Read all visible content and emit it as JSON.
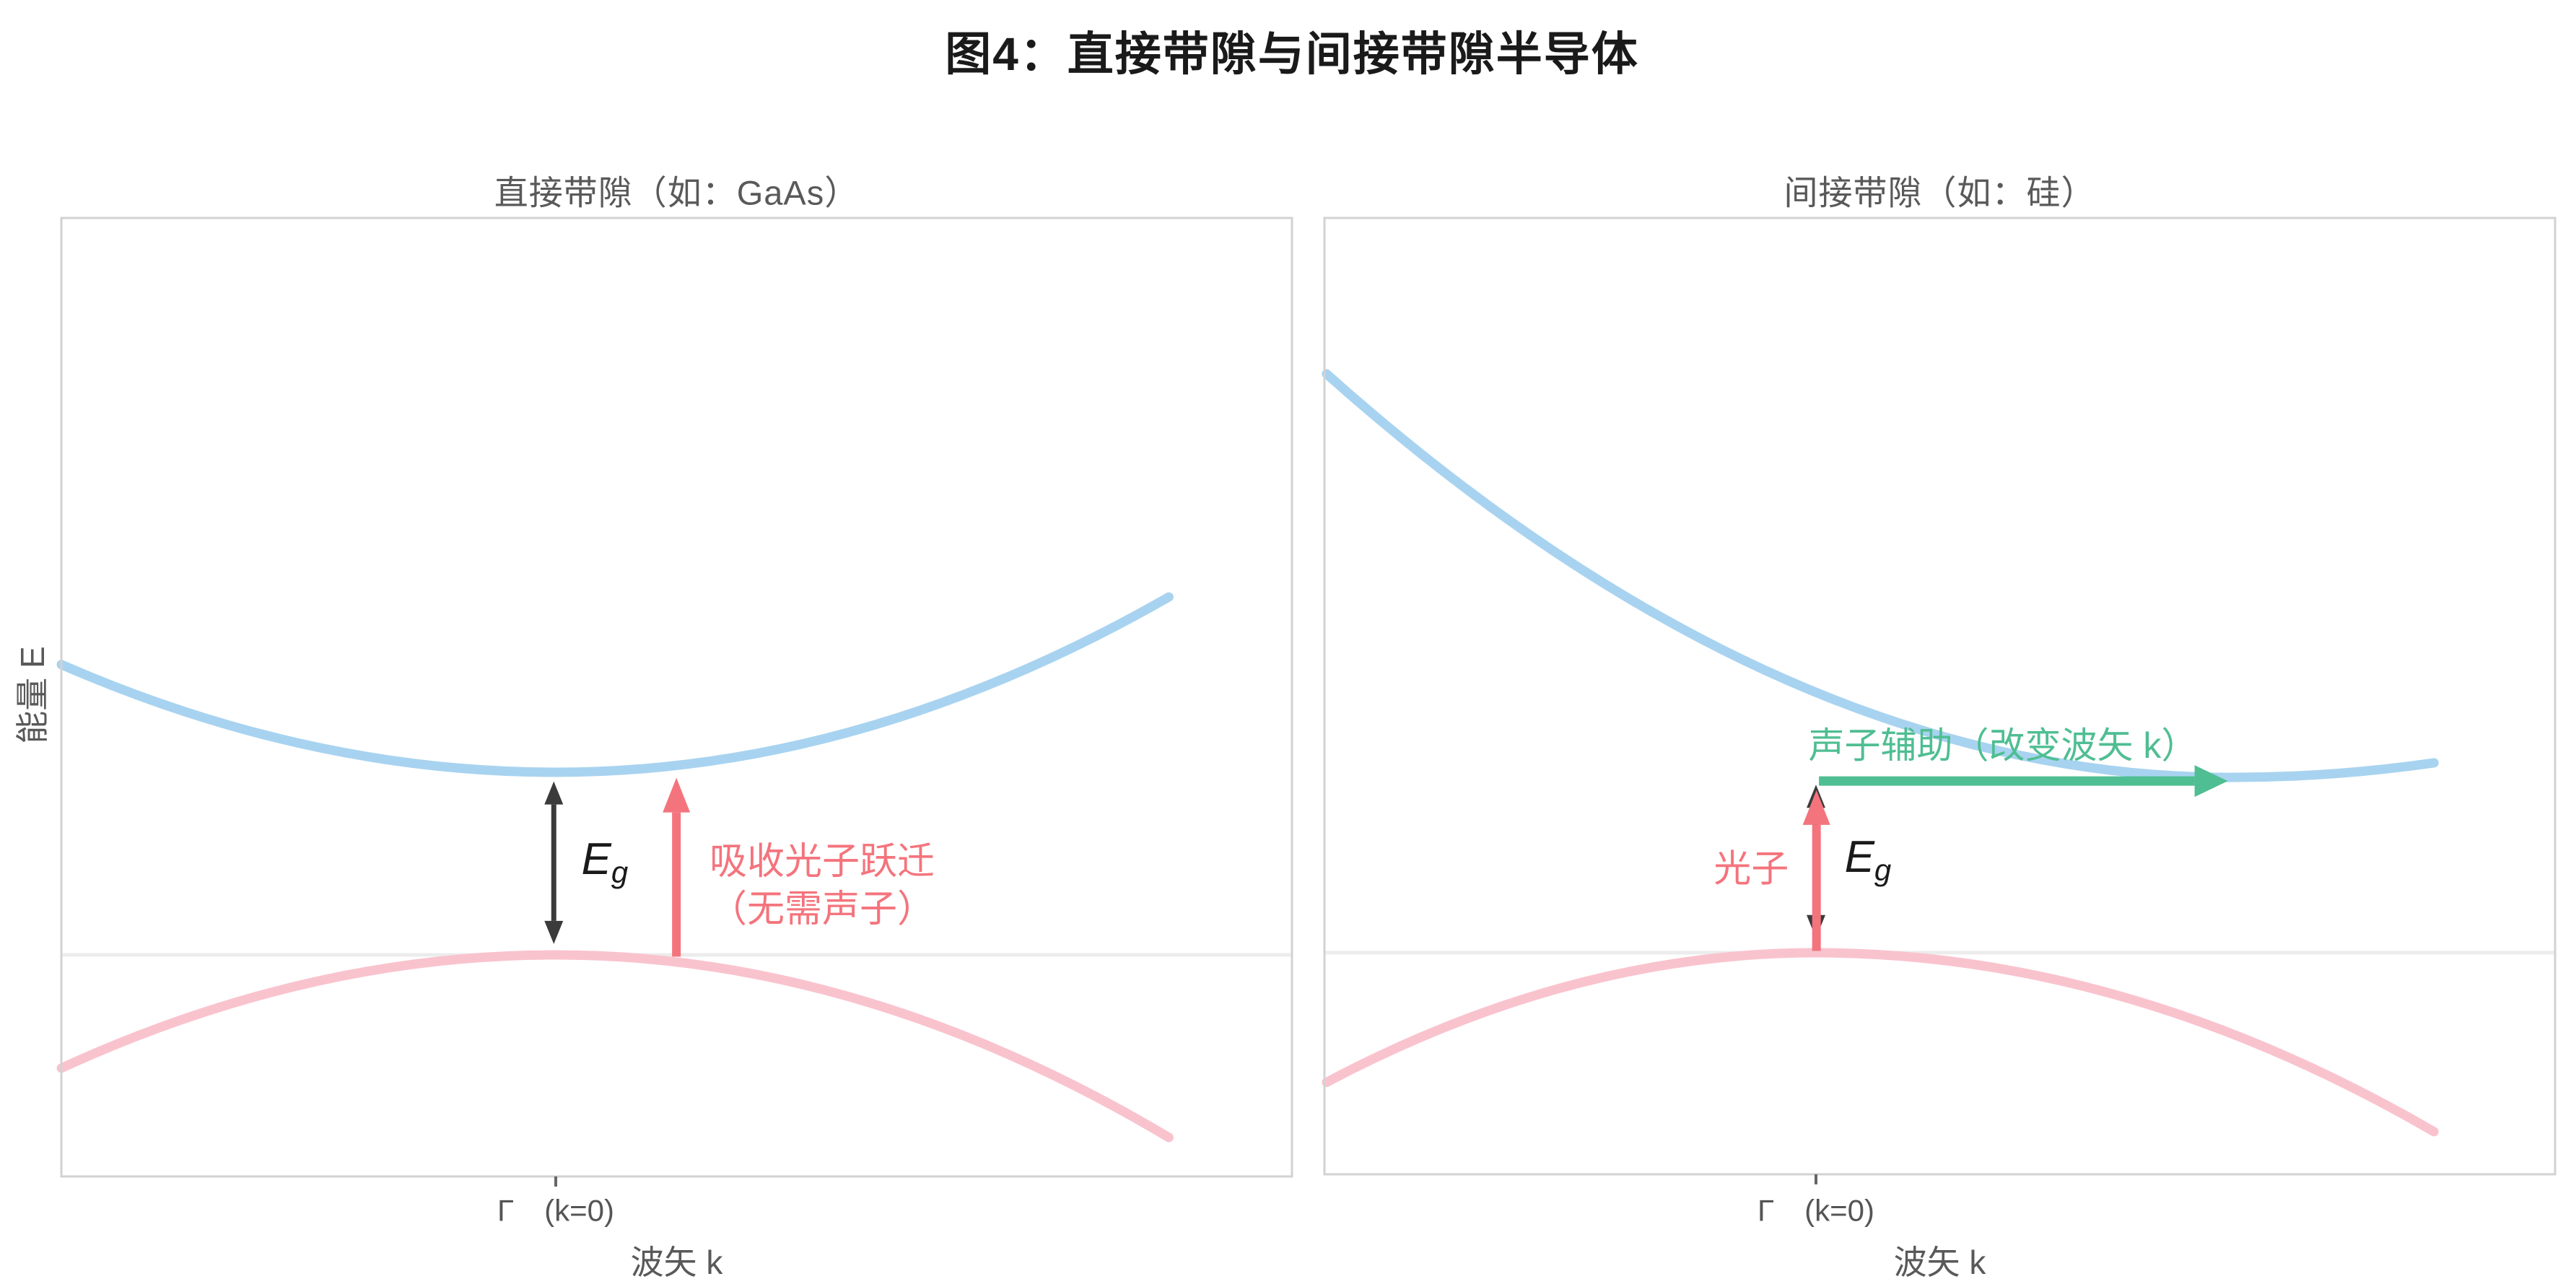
{
  "figure": {
    "title": "图4：直接带隙与间接带隙半导体"
  },
  "colors": {
    "title": "#1A1A1A",
    "label_text": "#595959",
    "tick_text": "#555555",
    "tick_mark": "#666666",
    "frame": "#D2D2D2",
    "reference_line": "#ECECEC",
    "conduction_band": "#A8D3F0",
    "valence_band": "#F9C3CE",
    "photon": "#F4747D",
    "phonon": "#4FBE92",
    "bandgap_arrow": "#3B3B3B",
    "eg_text": "#1A1A1A",
    "background": "#FFFFFF"
  },
  "chart_data": [
    {
      "type": "line",
      "title": "直接带隙（如：GaAs）",
      "xlabel": "波矢 k",
      "ylabel": "能量 E",
      "x_ticks": [
        {
          "k": 0,
          "label": "Γ　(k=0)"
        }
      ],
      "grid": false,
      "legend": false,
      "k_range": [
        -1.0,
        1.49
      ],
      "E_range": [
        -1.21,
        4.04
      ],
      "reference_line_E": 0,
      "bandgap": {
        "kind": "direct",
        "Eg_units": 1.0,
        "conduction_min_k": 0.0,
        "valence_max_k": 0.0
      },
      "series": [
        {
          "name": "conduction-band",
          "shape": "parabola",
          "color": "#A8D3F0",
          "points_kE": [
            [
              -1.0,
              1.59
            ],
            [
              0.0,
              1.0
            ],
            [
              1.24,
              1.96
            ]
          ]
        },
        {
          "name": "valence-band",
          "shape": "parabola",
          "color": "#F9C3CE",
          "points_kE": [
            [
              -1.0,
              -0.62
            ],
            [
              0.0,
              0.0
            ],
            [
              1.24,
              -1.0
            ]
          ]
        }
      ],
      "annotations": {
        "eg_arrow": {
          "k": -0.004,
          "E_from": 0.06,
          "E_to": 0.95,
          "heads": "both",
          "color": "#3B3B3B"
        },
        "eg_label": {
          "text_main": "E",
          "text_sub": "g",
          "k": 0.099,
          "E": 0.51
        },
        "photon_arrow": {
          "k": 0.244,
          "E_from": -0.01,
          "E_to": 0.97,
          "heads": "end",
          "color": "#F4747D"
        },
        "photon_label": {
          "lines": [
            "吸收光子跃迁",
            "（无需声子）"
          ],
          "k": 0.311,
          "E": 0.38,
          "color": "#F4747D"
        }
      }
    },
    {
      "type": "line",
      "title": "间接带隙（如：硅）",
      "xlabel": "波矢 k",
      "ylabel": "",
      "x_ticks": [
        {
          "k": 0,
          "label": "Γ　(k=0)"
        }
      ],
      "grid": false,
      "legend": false,
      "k_range": [
        -0.99,
        1.49
      ],
      "E_range": [
        -1.21,
        4.02
      ],
      "reference_line_E": 0,
      "bandgap": {
        "kind": "indirect",
        "Eg_units": 0.96,
        "conduction_min_k": 0.84,
        "valence_max_k": 0.0
      },
      "series": [
        {
          "name": "conduction-band",
          "shape": "parabola",
          "color": "#A8D3F0",
          "points_kE": [
            [
              -0.99,
              3.17
            ],
            [
              0.84,
              0.96
            ],
            [
              1.25,
              1.04
            ]
          ]
        },
        {
          "name": "valence-band",
          "shape": "parabola",
          "color": "#F9C3CE",
          "points_kE": [
            [
              -0.99,
              -0.71
            ],
            [
              0.0,
              0.0
            ],
            [
              1.25,
              -0.98
            ]
          ]
        }
      ],
      "annotations": {
        "eg_arrow": {
          "k": 0.0,
          "E_from": 0.08,
          "E_to": 0.92,
          "heads": "both",
          "color": "#3B3B3B"
        },
        "eg_label": {
          "text_main": "E",
          "text_sub": "g",
          "k": 0.105,
          "E": 0.51
        },
        "photon_arrow": {
          "k": 0.001,
          "E_from": 0.01,
          "E_to": 0.89,
          "heads": "end",
          "color": "#F4747D"
        },
        "photon_label": {
          "text": "光子",
          "k": -0.131,
          "E": 0.48,
          "color": "#F4747D"
        },
        "phonon_arrow": {
          "k_from": 0.006,
          "k_to": 0.833,
          "E": 0.94,
          "heads": "end",
          "color": "#4FBE92"
        },
        "phonon_label": {
          "text": "声子辅助（改变波矢 k）",
          "k": 0.378,
          "E": 1.15,
          "color": "#4FBE92"
        }
      }
    }
  ]
}
